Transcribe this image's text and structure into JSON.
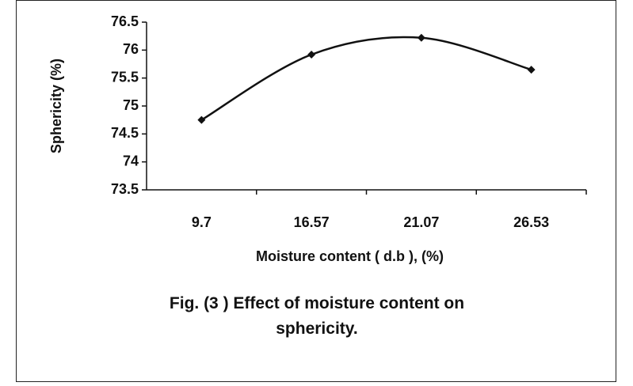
{
  "chart_data": {
    "type": "line",
    "title": "Fig. (3 ) Effect of moisture content on sphericity.",
    "xlabel": "Moisture content ( d.b ), (%)",
    "ylabel": "Sphericity (%)",
    "categories": [
      "9.7",
      "16.57",
      "21.07",
      "26.53"
    ],
    "series": [
      {
        "name": "Sphericity",
        "color": "#111111",
        "values": [
          74.75,
          75.92,
          76.22,
          75.65
        ]
      }
    ],
    "ylim": [
      73.5,
      76.5
    ],
    "yticks": [
      73.5,
      74,
      74.5,
      75,
      75.5,
      76,
      76.5
    ],
    "grid": false,
    "legend": false
  }
}
